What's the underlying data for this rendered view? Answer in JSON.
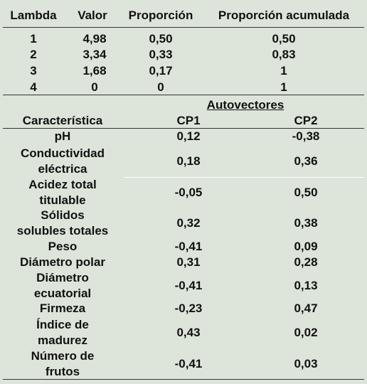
{
  "eigenvalues": {
    "header": [
      "Lambda",
      "Valor",
      "Proporción",
      "Proporción acumulada"
    ],
    "rows": [
      [
        "1",
        "4,98",
        "0,50",
        "0,50"
      ],
      [
        "2",
        "3,34",
        "0,33",
        "0,83"
      ],
      [
        "3",
        "1,68",
        "0,17",
        "1"
      ],
      [
        "4",
        "0",
        "0",
        "1"
      ]
    ]
  },
  "eigenvectors": {
    "group_header": "Autovectores",
    "header": [
      "Característica",
      "CP1",
      "CP2"
    ],
    "rows": [
      [
        "pH",
        "0,12",
        "-0,38"
      ],
      [
        "Conductividad\neléctrica",
        "0,18",
        "0,36"
      ],
      [
        "Acidez total\ntitulable",
        "-0,05",
        "0,50"
      ],
      [
        "Sólidos\nsolubles totales",
        "0,32",
        "0,38"
      ],
      [
        "Peso",
        "-0,41",
        "0,09"
      ],
      [
        "Diámetro polar",
        "0,31",
        "0,28"
      ],
      [
        "Diámetro\necuatorial",
        "-0,41",
        "0,13"
      ],
      [
        "Firmeza",
        "-0,23",
        "0,47"
      ],
      [
        "Índice de\nmadurez",
        "0,43",
        "0,02"
      ],
      [
        "Número de\nfrutos",
        "-0,41",
        "0,03"
      ]
    ]
  }
}
